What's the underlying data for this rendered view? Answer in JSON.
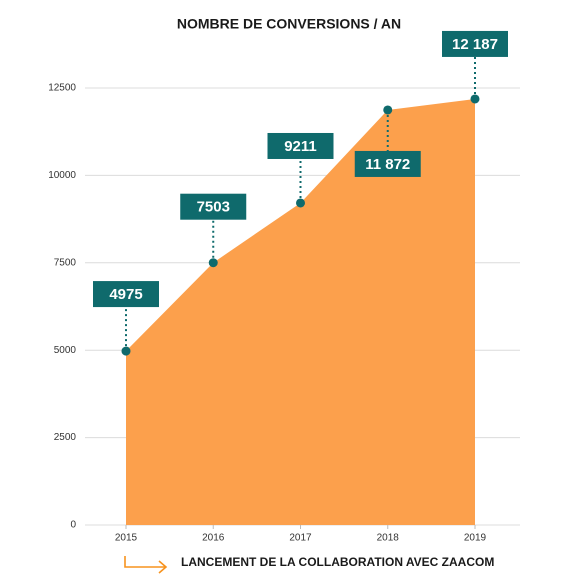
{
  "chart_data": {
    "type": "area",
    "title": "NOMBRE DE CONVERSIONS / AN",
    "categories": [
      "2015",
      "2016",
      "2017",
      "2018",
      "2019"
    ],
    "values": [
      4975,
      7503,
      9211,
      11872,
      12187
    ],
    "value_labels": [
      "4975",
      "7503",
      "9211",
      "11 872",
      "12 187"
    ],
    "color": "#fca04c",
    "label_color": "#0f6a6c",
    "ylim": [
      0,
      12500
    ],
    "yticks": [
      0,
      2500,
      5000,
      7500,
      10000,
      12500
    ],
    "grid": true,
    "annotation": "LANCEMENT DE LA COLLABORATION AVEC ZAACOM"
  }
}
